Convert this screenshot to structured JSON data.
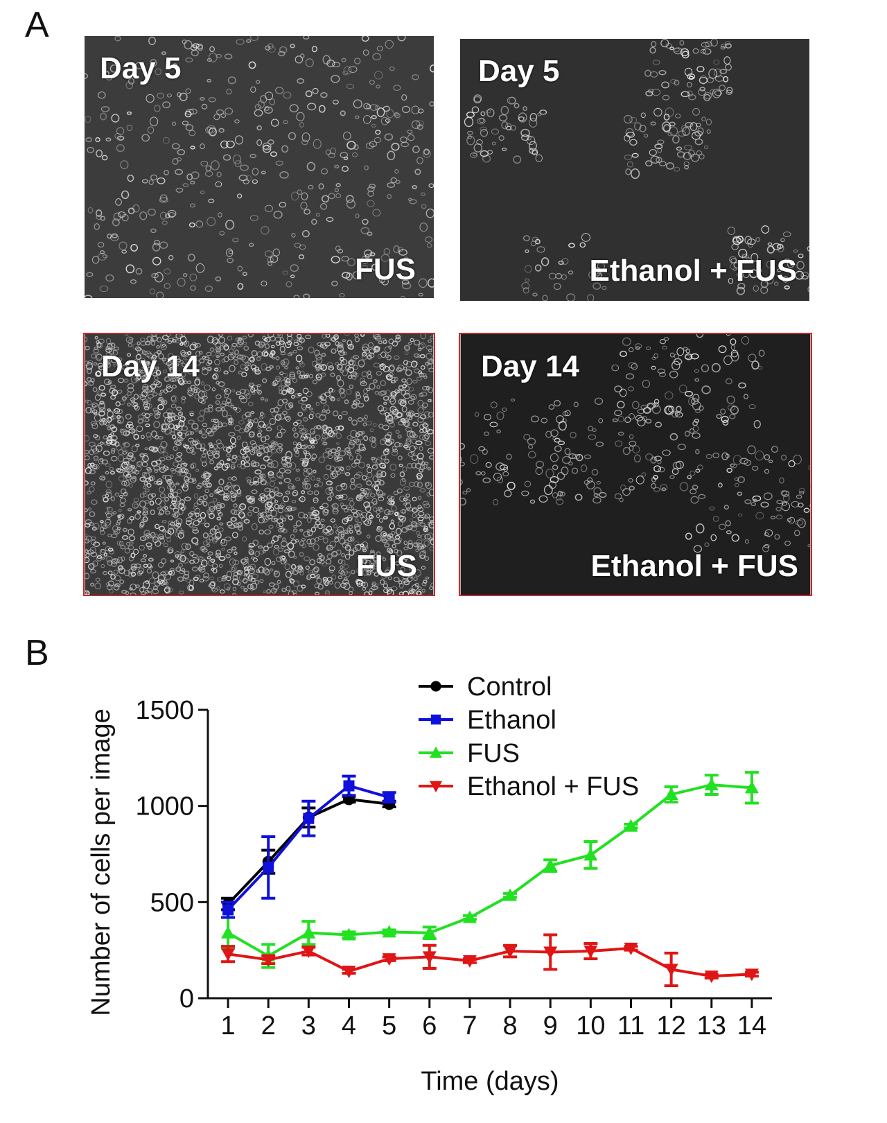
{
  "panels": {
    "a_label": "A",
    "b_label": "B",
    "images": [
      {
        "day": "Day 5",
        "treatment": "FUS"
      },
      {
        "day": "Day 5",
        "treatment": "Ethanol + FUS"
      },
      {
        "day": "Day 14",
        "treatment": "FUS"
      },
      {
        "day": "Day 14",
        "treatment": "Ethanol + FUS"
      }
    ]
  },
  "chart_data": {
    "type": "line",
    "title": "",
    "xlabel": "Time (days)",
    "ylabel": "Number of cells per image",
    "xlim": [
      0.5,
      14.5
    ],
    "ylim": [
      0,
      1500
    ],
    "xticks": [
      1,
      2,
      3,
      4,
      5,
      6,
      7,
      8,
      9,
      10,
      11,
      12,
      13,
      14
    ],
    "yticks": [
      0,
      500,
      1000,
      1500
    ],
    "legend_position": "top-right",
    "series": [
      {
        "name": "Control",
        "color": "#000000",
        "marker": "circle",
        "x": [
          1,
          2,
          3,
          4,
          5
        ],
        "values": [
          490,
          710,
          940,
          1035,
          1010
        ],
        "errors": [
          30,
          60,
          50,
          15,
          15
        ]
      },
      {
        "name": "Ethanol",
        "color": "#1010dd",
        "marker": "square",
        "x": [
          1,
          2,
          3,
          4,
          5
        ],
        "values": [
          460,
          680,
          935,
          1105,
          1045
        ],
        "errors": [
          40,
          160,
          90,
          50,
          25
        ]
      },
      {
        "name": "FUS",
        "color": "#22e022",
        "marker": "triangle-up",
        "x": [
          1,
          2,
          3,
          4,
          5,
          6,
          7,
          8,
          9,
          10,
          11,
          12,
          13,
          14
        ],
        "values": [
          340,
          220,
          340,
          330,
          345,
          340,
          420,
          535,
          690,
          745,
          895,
          1060,
          1110,
          1095
        ],
        "errors": [
          80,
          60,
          60,
          15,
          10,
          30,
          10,
          10,
          30,
          70,
          10,
          40,
          50,
          80
        ]
      },
      {
        "name": "Ethanol + FUS",
        "color": "#e01515",
        "marker": "triangle-down",
        "x": [
          1,
          2,
          3,
          4,
          5,
          6,
          7,
          8,
          9,
          10,
          11,
          12,
          13,
          14
        ],
        "values": [
          230,
          200,
          245,
          140,
          205,
          215,
          195,
          245,
          240,
          245,
          260,
          150,
          115,
          125
        ],
        "errors": [
          40,
          20,
          20,
          10,
          10,
          60,
          10,
          30,
          90,
          40,
          10,
          85,
          10,
          10
        ]
      }
    ]
  }
}
